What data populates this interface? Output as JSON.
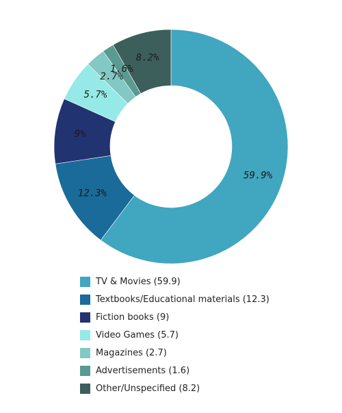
{
  "chart_data": {
    "type": "pie",
    "donut": true,
    "legend_position": "bottom",
    "slices": [
      {
        "label": "TV & Movies",
        "value": 59.9,
        "color": "#41a6bf",
        "slice_label": "59.9%"
      },
      {
        "label": "Textbooks/Educational materials",
        "value": 12.3,
        "color": "#1a6a9a",
        "slice_label": "12.3%"
      },
      {
        "label": "Fiction books",
        "value": 9,
        "color": "#223372",
        "slice_label": "9%"
      },
      {
        "label": "Video Games",
        "value": 5.7,
        "color": "#95e9e6",
        "slice_label": "5.7%"
      },
      {
        "label": "Magazines",
        "value": 2.7,
        "color": "#82c8c4",
        "slice_label": "2.7%"
      },
      {
        "label": "Advertisements",
        "value": 1.6,
        "color": "#5a9a93",
        "slice_label": "1.6%"
      },
      {
        "label": "Other/Unspecified",
        "value": 8.2,
        "color": "#3d5f5c",
        "slice_label": "8.2%"
      }
    ],
    "legend": [
      "TV & Movies (59.9)",
      "Textbooks/Educational materials (12.3)",
      "Fiction books (9)",
      "Video Games (5.7)",
      "Magazines (2.7)",
      "Advertisements (1.6)",
      "Other/Unspecified (8.2)"
    ]
  }
}
